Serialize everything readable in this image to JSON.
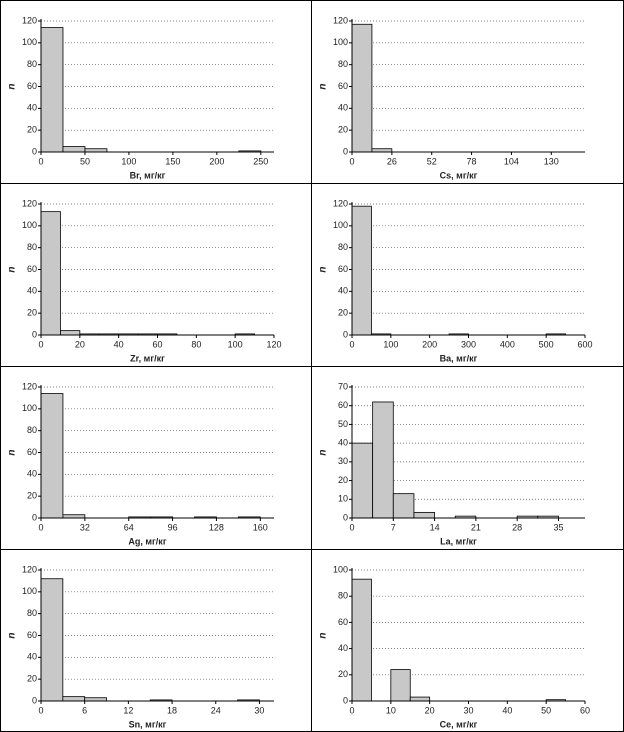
{
  "chart_data": [
    {
      "type": "histogram",
      "xlabel": "Br, мг/кг",
      "ylabel": "n",
      "bins": [
        0,
        25,
        50,
        75,
        100,
        125,
        150,
        175,
        200,
        225,
        250
      ],
      "values": [
        114,
        5,
        3,
        0,
        0,
        0,
        0,
        0,
        0,
        1
      ],
      "xlim": [
        0,
        265
      ],
      "xticks": [
        0,
        50,
        100,
        150,
        200,
        250
      ],
      "ylim": [
        0,
        120
      ],
      "yticks": [
        0,
        20,
        40,
        60,
        80,
        100,
        120
      ],
      "color": "#c8c8c8",
      "grid": true
    },
    {
      "type": "histogram",
      "xlabel": "Cs, мг/кг",
      "ylabel": "n",
      "bins": [
        0,
        13,
        26
      ],
      "values": [
        117,
        3
      ],
      "xlim": [
        0,
        152
      ],
      "xticks": [
        0,
        26,
        52,
        78,
        104,
        130
      ],
      "ylim": [
        0,
        120
      ],
      "yticks": [
        0,
        20,
        40,
        60,
        80,
        100,
        120
      ],
      "color": "#c8c8c8",
      "grid": true
    },
    {
      "type": "histogram",
      "xlabel": "Zr, мг/кг",
      "ylabel": "n",
      "bins": [
        0,
        10,
        20,
        30,
        40,
        50,
        60,
        70,
        80,
        90,
        100,
        110
      ],
      "values": [
        113,
        4,
        1,
        1,
        1,
        1,
        1,
        0,
        0,
        0,
        1
      ],
      "xlim": [
        0,
        120
      ],
      "xticks": [
        0,
        20,
        40,
        60,
        80,
        100,
        120
      ],
      "ylim": [
        0,
        120
      ],
      "yticks": [
        0,
        20,
        40,
        60,
        80,
        100,
        120
      ],
      "color": "#c8c8c8",
      "grid": true
    },
    {
      "type": "histogram",
      "xlabel": "Ba, мг/кг",
      "ylabel": "n",
      "bins": [
        0,
        50,
        100,
        150,
        200,
        250,
        300,
        350,
        400,
        450,
        500,
        550
      ],
      "values": [
        118,
        1,
        0,
        0,
        0,
        1,
        0,
        0,
        0,
        0,
        1
      ],
      "xlim": [
        0,
        600
      ],
      "xticks": [
        0,
        100,
        200,
        300,
        400,
        500,
        600
      ],
      "ylim": [
        0,
        120
      ],
      "yticks": [
        0,
        20,
        40,
        60,
        80,
        100,
        120
      ],
      "color": "#c8c8c8",
      "grid": true
    },
    {
      "type": "histogram",
      "xlabel": "Ag, мг/кг",
      "ylabel": "n",
      "bins": [
        0,
        16,
        32,
        48,
        64,
        80,
        96,
        112,
        128,
        144,
        160
      ],
      "values": [
        114,
        3,
        0,
        0,
        1,
        1,
        0,
        1,
        0,
        1
      ],
      "xlim": [
        0,
        170
      ],
      "xticks": [
        0,
        32,
        64,
        96,
        128,
        160
      ],
      "ylim": [
        0,
        120
      ],
      "yticks": [
        0,
        20,
        40,
        60,
        80,
        100,
        120
      ],
      "color": "#c8c8c8",
      "grid": true
    },
    {
      "type": "histogram",
      "xlabel": "La, мг/кг",
      "ylabel": "n",
      "bins": [
        0,
        3.5,
        7,
        10.5,
        14,
        17.5,
        21,
        24.5,
        28,
        31.5,
        35
      ],
      "values": [
        40,
        62,
        13,
        3,
        0,
        1,
        0,
        0,
        1,
        1
      ],
      "xlim": [
        0,
        39.5
      ],
      "xticks": [
        0,
        7,
        14,
        21,
        28,
        35
      ],
      "ylim": [
        0,
        70
      ],
      "yticks": [
        0,
        10,
        20,
        30,
        40,
        50,
        60,
        70
      ],
      "color": "#c8c8c8",
      "grid": true
    },
    {
      "type": "histogram",
      "xlabel": "Sn, мг/кг",
      "ylabel": "n",
      "bins": [
        0,
        3,
        6,
        9,
        12,
        15,
        18,
        21,
        24,
        27,
        30
      ],
      "values": [
        112,
        4,
        3,
        0,
        0,
        1,
        0,
        0,
        0,
        1
      ],
      "xlim": [
        0,
        32
      ],
      "xticks": [
        0,
        6,
        12,
        18,
        24,
        30
      ],
      "ylim": [
        0,
        120
      ],
      "yticks": [
        0,
        20,
        40,
        60,
        80,
        100,
        120
      ],
      "color": "#c8c8c8",
      "grid": true
    },
    {
      "type": "histogram",
      "xlabel": "Ce, мг/кг",
      "ylabel": "n",
      "bins": [
        0,
        5,
        10,
        15,
        20,
        25,
        30,
        35,
        40,
        45,
        50,
        55
      ],
      "values": [
        93,
        0,
        24,
        3,
        0,
        0,
        0,
        0,
        0,
        0,
        1
      ],
      "xlim": [
        0,
        60
      ],
      "xticks": [
        0,
        10,
        20,
        30,
        40,
        50,
        60
      ],
      "ylim": [
        0,
        100
      ],
      "yticks": [
        0,
        20,
        40,
        60,
        80,
        100
      ],
      "color": "#c8c8c8",
      "grid": true
    }
  ]
}
